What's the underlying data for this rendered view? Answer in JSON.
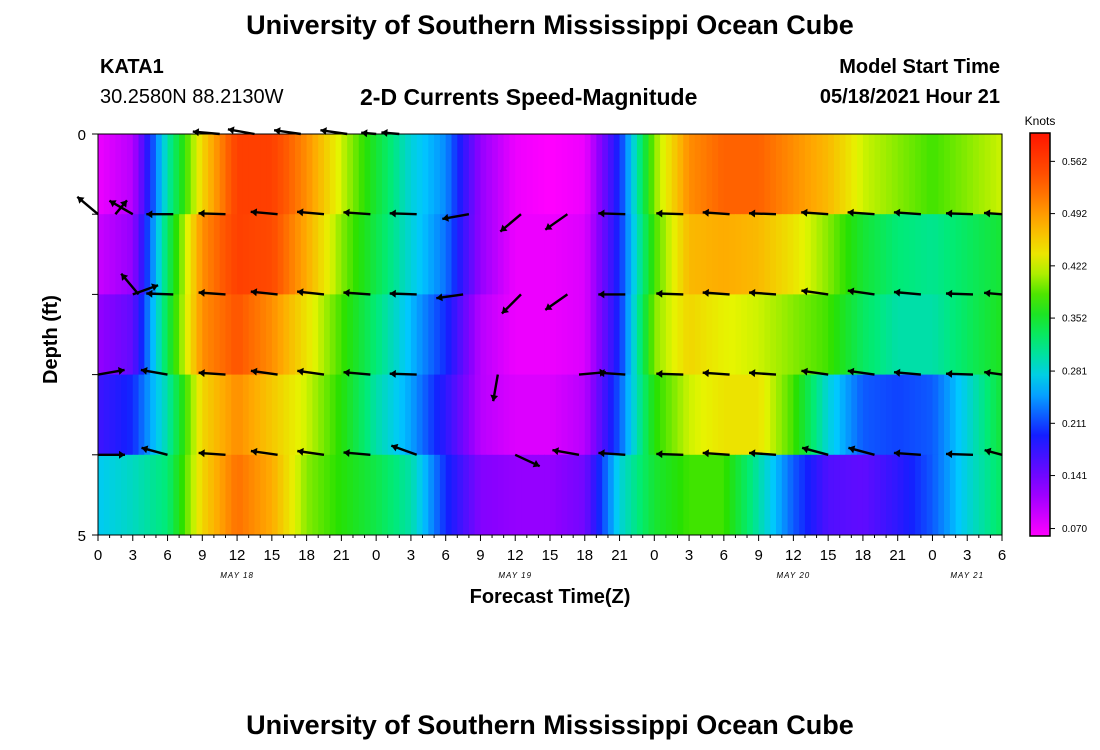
{
  "page": {
    "title_top": "University of Southern Mississippi Ocean Cube",
    "title_bottom": "University of Southern Mississippi Ocean Cube",
    "station_id": "KATA1",
    "station_coords": "30.2580N  88.2130W",
    "plot_title": "2-D Currents Speed-Magnitude",
    "model_start_label": "Model Start Time",
    "model_start_value": "05/18/2021 Hour 21"
  },
  "chart_data": {
    "type": "heatmap",
    "title": "2-D Currents Speed-Magnitude",
    "xlabel": "Forecast Time(Z)",
    "ylabel": "Depth (ft)",
    "x_tick_labels": [
      "0",
      "3",
      "6",
      "9",
      "12",
      "15",
      "18",
      "21",
      "0",
      "3",
      "6",
      "9",
      "12",
      "15",
      "18",
      "21",
      "0",
      "3",
      "6",
      "9",
      "12",
      "15",
      "18",
      "21",
      "0",
      "3",
      "6"
    ],
    "date_labels": [
      {
        "text": "MAY 18",
        "hour": 12
      },
      {
        "text": "MAY 19",
        "hour": 36
      },
      {
        "text": "MAY 20",
        "hour": 60
      },
      {
        "text": "MAY 21",
        "hour": 75
      }
    ],
    "xlim": [
      0,
      78
    ],
    "ylim": [
      0,
      5
    ],
    "y_tick_labels": [
      "0",
      "5"
    ],
    "depth_rows": 5,
    "colorbar": {
      "unit": "Knots",
      "min": 0.06,
      "max": 0.6,
      "ticks": [
        "0.562",
        "0.492",
        "0.422",
        "0.352",
        "0.281",
        "0.211",
        "0.141",
        "0.070"
      ],
      "tick_values": [
        0.562,
        0.492,
        0.422,
        0.352,
        0.281,
        0.211,
        0.141,
        0.07
      ]
    },
    "speed_knots_by_depth_row": {
      "row_times": [
        0,
        3,
        6,
        9,
        12,
        15,
        18,
        21,
        24,
        27,
        30,
        33,
        36,
        39,
        42,
        45,
        48,
        51,
        54,
        57,
        60,
        63,
        66,
        69,
        72,
        75,
        78
      ],
      "rows": [
        [
          0.07,
          0.1,
          0.3,
          0.45,
          0.56,
          0.56,
          0.5,
          0.42,
          0.35,
          0.28,
          0.24,
          0.12,
          0.07,
          0.06,
          0.07,
          0.2,
          0.4,
          0.5,
          0.53,
          0.53,
          0.5,
          0.47,
          0.42,
          0.4,
          0.38,
          0.4,
          0.42
        ],
        [
          0.09,
          0.12,
          0.33,
          0.5,
          0.56,
          0.55,
          0.48,
          0.4,
          0.34,
          0.28,
          0.23,
          0.12,
          0.07,
          0.07,
          0.08,
          0.2,
          0.38,
          0.47,
          0.48,
          0.47,
          0.44,
          0.4,
          0.35,
          0.32,
          0.31,
          0.33,
          0.35
        ],
        [
          0.12,
          0.15,
          0.34,
          0.5,
          0.54,
          0.5,
          0.44,
          0.38,
          0.32,
          0.26,
          0.2,
          0.1,
          0.07,
          0.07,
          0.08,
          0.2,
          0.4,
          0.45,
          0.43,
          0.42,
          0.4,
          0.38,
          0.33,
          0.3,
          0.3,
          0.33,
          0.36
        ],
        [
          0.17,
          0.2,
          0.3,
          0.45,
          0.5,
          0.46,
          0.42,
          0.37,
          0.3,
          0.25,
          0.18,
          0.1,
          0.08,
          0.08,
          0.1,
          0.22,
          0.37,
          0.42,
          0.44,
          0.44,
          0.38,
          0.28,
          0.22,
          0.21,
          0.22,
          0.28,
          0.35
        ],
        [
          0.27,
          0.29,
          0.32,
          0.45,
          0.52,
          0.48,
          0.4,
          0.37,
          0.34,
          0.3,
          0.2,
          0.13,
          0.12,
          0.12,
          0.14,
          0.28,
          0.35,
          0.38,
          0.38,
          0.3,
          0.22,
          0.16,
          0.15,
          0.18,
          0.22,
          0.28,
          0.33
        ]
      ]
    },
    "vectors": [
      {
        "hour": 0.0,
        "depth": 1,
        "dir_deg": 140,
        "len": 0.9
      },
      {
        "hour": 1.5,
        "depth": 1,
        "dir_deg": 50,
        "len": 0.6
      },
      {
        "hour": 3.0,
        "depth": 1,
        "dir_deg": 150,
        "len": 0.9
      },
      {
        "hour": 3.0,
        "depth": 2,
        "dir_deg": 20,
        "len": 0.9
      },
      {
        "hour": 3.5,
        "depth": 2,
        "dir_deg": 130,
        "len": 0.9
      },
      {
        "hour": 0.0,
        "depth": 3,
        "dir_deg": 10,
        "len": 0.9
      },
      {
        "hour": 0.0,
        "depth": 4,
        "dir_deg": 0,
        "len": 0.9
      },
      {
        "hour": 6.0,
        "depth": 3,
        "dir_deg": 170,
        "len": 0.9
      },
      {
        "hour": 6.0,
        "depth": 4,
        "dir_deg": 165,
        "len": 0.9
      },
      {
        "hour": 10.5,
        "depth": 0,
        "dir_deg": 175,
        "len": 0.9
      },
      {
        "hour": 13.5,
        "depth": 0,
        "dir_deg": 170,
        "len": 0.9
      },
      {
        "hour": 17.5,
        "depth": 0,
        "dir_deg": 172,
        "len": 0.9
      },
      {
        "hour": 21.5,
        "depth": 0,
        "dir_deg": 172,
        "len": 0.9
      },
      {
        "hour": 24.0,
        "depth": 0,
        "dir_deg": 175,
        "len": 0.5
      },
      {
        "hour": 26.0,
        "depth": 0,
        "dir_deg": 175,
        "len": 0.6
      },
      {
        "hour": 6.5,
        "depth": 1,
        "dir_deg": 180,
        "len": 0.9
      },
      {
        "hour": 11.0,
        "depth": 1,
        "dir_deg": 178,
        "len": 0.9
      },
      {
        "hour": 15.5,
        "depth": 1,
        "dir_deg": 175,
        "len": 0.9
      },
      {
        "hour": 19.5,
        "depth": 1,
        "dir_deg": 175,
        "len": 0.9
      },
      {
        "hour": 23.5,
        "depth": 1,
        "dir_deg": 176,
        "len": 0.9
      },
      {
        "hour": 27.5,
        "depth": 1,
        "dir_deg": 178,
        "len": 0.9
      },
      {
        "hour": 32.0,
        "depth": 1,
        "dir_deg": 190,
        "len": 0.9
      },
      {
        "hour": 36.5,
        "depth": 1,
        "dir_deg": 220,
        "len": 0.9
      },
      {
        "hour": 40.5,
        "depth": 1,
        "dir_deg": 215,
        "len": 0.9
      },
      {
        "hour": 45.5,
        "depth": 1,
        "dir_deg": 178,
        "len": 0.9
      },
      {
        "hour": 50.5,
        "depth": 1,
        "dir_deg": 178,
        "len": 0.9
      },
      {
        "hour": 54.5,
        "depth": 1,
        "dir_deg": 176,
        "len": 0.9
      },
      {
        "hour": 58.5,
        "depth": 1,
        "dir_deg": 178,
        "len": 0.9
      },
      {
        "hour": 63.0,
        "depth": 1,
        "dir_deg": 176,
        "len": 0.9
      },
      {
        "hour": 67.0,
        "depth": 1,
        "dir_deg": 176,
        "len": 0.9
      },
      {
        "hour": 71.0,
        "depth": 1,
        "dir_deg": 176,
        "len": 0.9
      },
      {
        "hour": 75.5,
        "depth": 1,
        "dir_deg": 178,
        "len": 0.9
      },
      {
        "hour": 78.0,
        "depth": 1,
        "dir_deg": 176,
        "len": 0.6
      },
      {
        "hour": 6.5,
        "depth": 2,
        "dir_deg": 178,
        "len": 0.9
      },
      {
        "hour": 11.0,
        "depth": 2,
        "dir_deg": 176,
        "len": 0.9
      },
      {
        "hour": 15.5,
        "depth": 2,
        "dir_deg": 174,
        "len": 0.9
      },
      {
        "hour": 19.5,
        "depth": 2,
        "dir_deg": 174,
        "len": 0.9
      },
      {
        "hour": 23.5,
        "depth": 2,
        "dir_deg": 176,
        "len": 0.9
      },
      {
        "hour": 27.5,
        "depth": 2,
        "dir_deg": 178,
        "len": 0.9
      },
      {
        "hour": 31.5,
        "depth": 2,
        "dir_deg": 188,
        "len": 0.9
      },
      {
        "hour": 36.5,
        "depth": 2,
        "dir_deg": 225,
        "len": 0.9
      },
      {
        "hour": 40.5,
        "depth": 2,
        "dir_deg": 215,
        "len": 0.9
      },
      {
        "hour": 45.5,
        "depth": 2,
        "dir_deg": 180,
        "len": 0.9
      },
      {
        "hour": 50.5,
        "depth": 2,
        "dir_deg": 178,
        "len": 0.9
      },
      {
        "hour": 54.5,
        "depth": 2,
        "dir_deg": 176,
        "len": 0.9
      },
      {
        "hour": 58.5,
        "depth": 2,
        "dir_deg": 176,
        "len": 0.9
      },
      {
        "hour": 63.0,
        "depth": 2,
        "dir_deg": 172,
        "len": 0.9
      },
      {
        "hour": 67.0,
        "depth": 2,
        "dir_deg": 172,
        "len": 0.9
      },
      {
        "hour": 71.0,
        "depth": 2,
        "dir_deg": 175,
        "len": 0.9
      },
      {
        "hour": 75.5,
        "depth": 2,
        "dir_deg": 178,
        "len": 0.9
      },
      {
        "hour": 78.0,
        "depth": 2,
        "dir_deg": 175,
        "len": 0.6
      },
      {
        "hour": 11.0,
        "depth": 3,
        "dir_deg": 176,
        "len": 0.9
      },
      {
        "hour": 15.5,
        "depth": 3,
        "dir_deg": 172,
        "len": 0.9
      },
      {
        "hour": 19.5,
        "depth": 3,
        "dir_deg": 172,
        "len": 0.9
      },
      {
        "hour": 23.5,
        "depth": 3,
        "dir_deg": 175,
        "len": 0.9
      },
      {
        "hour": 27.5,
        "depth": 3,
        "dir_deg": 178,
        "len": 0.9
      },
      {
        "hour": 34.5,
        "depth": 3,
        "dir_deg": 260,
        "len": 0.9
      },
      {
        "hour": 41.5,
        "depth": 3,
        "dir_deg": 5,
        "len": 0.9
      },
      {
        "hour": 45.5,
        "depth": 3,
        "dir_deg": 176,
        "len": 0.9
      },
      {
        "hour": 50.5,
        "depth": 3,
        "dir_deg": 178,
        "len": 0.9
      },
      {
        "hour": 54.5,
        "depth": 3,
        "dir_deg": 176,
        "len": 0.9
      },
      {
        "hour": 58.5,
        "depth": 3,
        "dir_deg": 176,
        "len": 0.9
      },
      {
        "hour": 63.0,
        "depth": 3,
        "dir_deg": 172,
        "len": 0.9
      },
      {
        "hour": 67.0,
        "depth": 3,
        "dir_deg": 172,
        "len": 0.9
      },
      {
        "hour": 71.0,
        "depth": 3,
        "dir_deg": 175,
        "len": 0.9
      },
      {
        "hour": 75.5,
        "depth": 3,
        "dir_deg": 178,
        "len": 0.9
      },
      {
        "hour": 78.0,
        "depth": 3,
        "dir_deg": 172,
        "len": 0.6
      },
      {
        "hour": 11.0,
        "depth": 4,
        "dir_deg": 176,
        "len": 0.9
      },
      {
        "hour": 15.5,
        "depth": 4,
        "dir_deg": 172,
        "len": 0.9
      },
      {
        "hour": 19.5,
        "depth": 4,
        "dir_deg": 172,
        "len": 0.9
      },
      {
        "hour": 23.5,
        "depth": 4,
        "dir_deg": 175,
        "len": 0.9
      },
      {
        "hour": 27.5,
        "depth": 4,
        "dir_deg": 160,
        "len": 0.9
      },
      {
        "hour": 36.0,
        "depth": 4,
        "dir_deg": 335,
        "len": 0.9
      },
      {
        "hour": 41.5,
        "depth": 4,
        "dir_deg": 170,
        "len": 0.9
      },
      {
        "hour": 45.5,
        "depth": 4,
        "dir_deg": 176,
        "len": 0.9
      },
      {
        "hour": 50.5,
        "depth": 4,
        "dir_deg": 178,
        "len": 0.9
      },
      {
        "hour": 54.5,
        "depth": 4,
        "dir_deg": 176,
        "len": 0.9
      },
      {
        "hour": 58.5,
        "depth": 4,
        "dir_deg": 176,
        "len": 0.9
      },
      {
        "hour": 63.0,
        "depth": 4,
        "dir_deg": 165,
        "len": 0.9
      },
      {
        "hour": 67.0,
        "depth": 4,
        "dir_deg": 165,
        "len": 0.9
      },
      {
        "hour": 71.0,
        "depth": 4,
        "dir_deg": 176,
        "len": 0.9
      },
      {
        "hour": 75.5,
        "depth": 4,
        "dir_deg": 178,
        "len": 0.9
      },
      {
        "hour": 78.0,
        "depth": 4,
        "dir_deg": 165,
        "len": 0.6
      }
    ]
  }
}
